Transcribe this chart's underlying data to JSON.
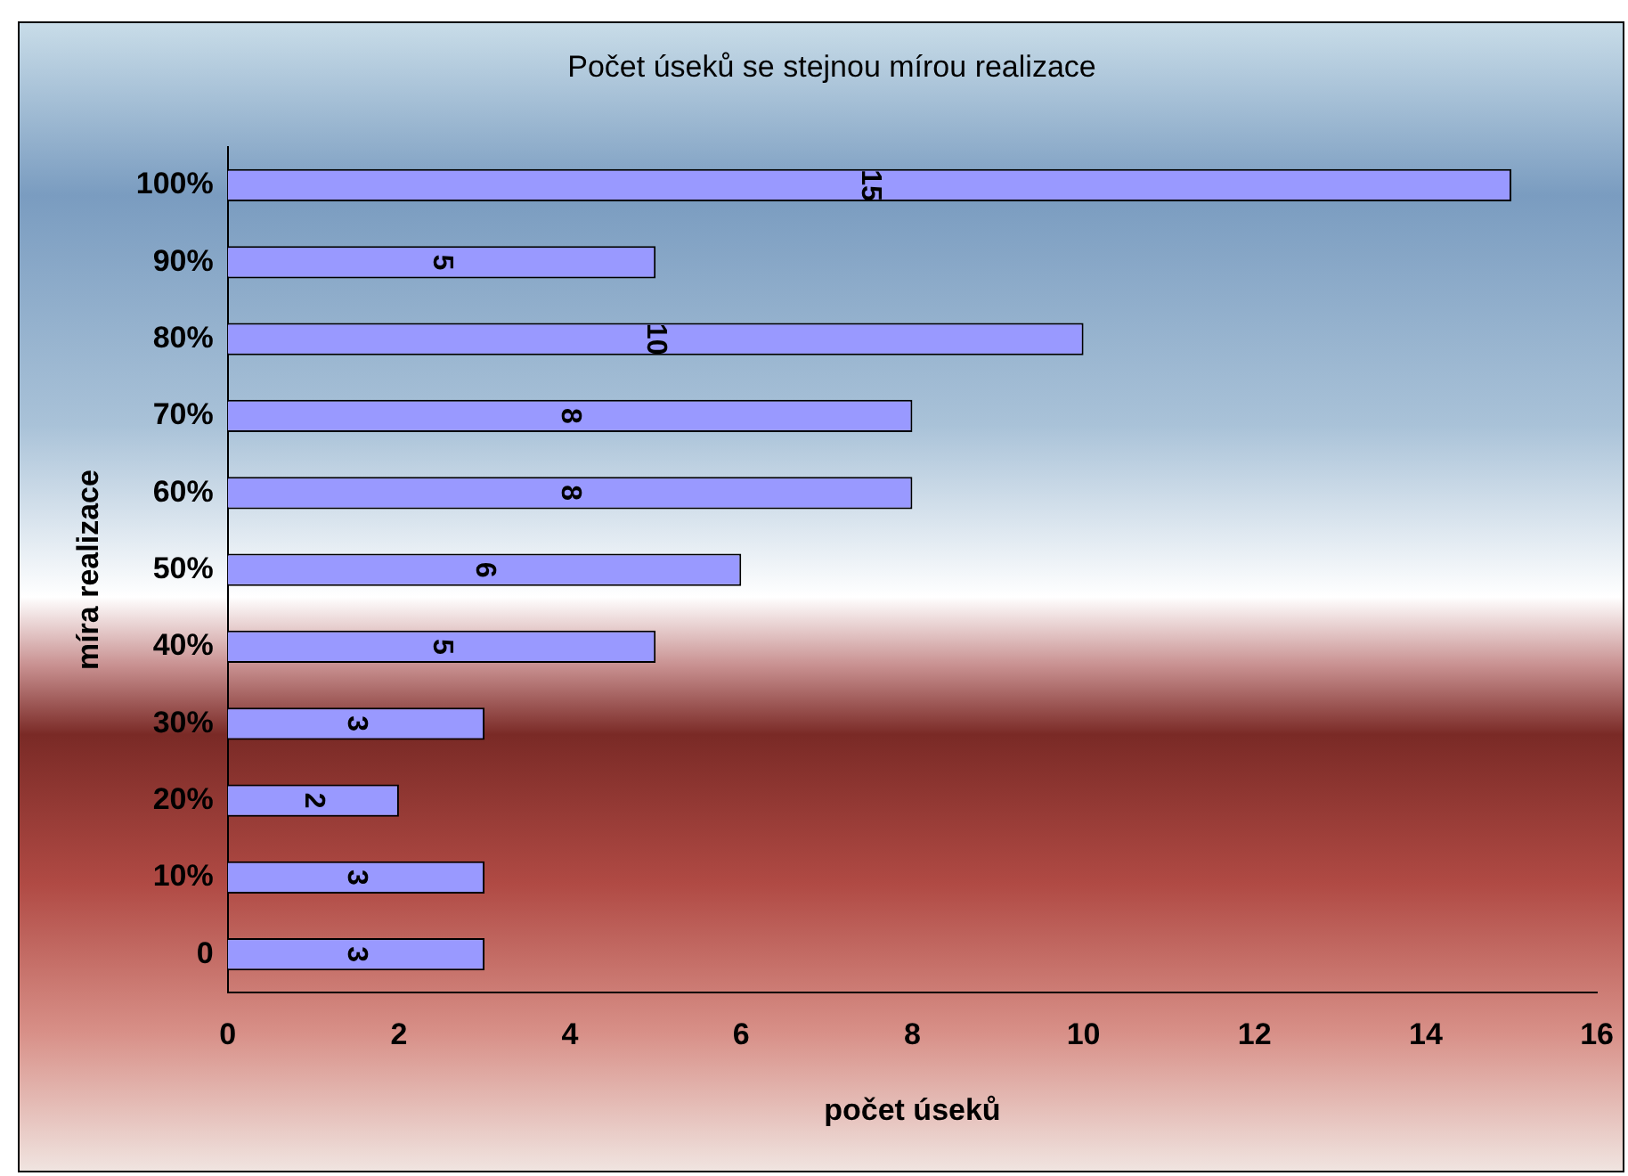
{
  "chart_data": {
    "type": "bar",
    "orientation": "horizontal",
    "title": "Počet úseků se stejnou mírou realizace",
    "xlabel": "počet úseků",
    "ylabel": "míra realizace",
    "categories": [
      "100%",
      "90%",
      "80%",
      "70%",
      "60%",
      "50%",
      "40%",
      "30%",
      "20%",
      "10%",
      "0"
    ],
    "values": [
      15,
      5,
      10,
      8,
      8,
      6,
      5,
      3,
      2,
      3,
      3
    ],
    "color": "#9999ff",
    "xlim": [
      0,
      16
    ],
    "xticks": [
      0,
      2,
      4,
      6,
      8,
      10,
      12,
      14,
      16
    ],
    "grid": false,
    "legend": false,
    "data_labels": true
  }
}
